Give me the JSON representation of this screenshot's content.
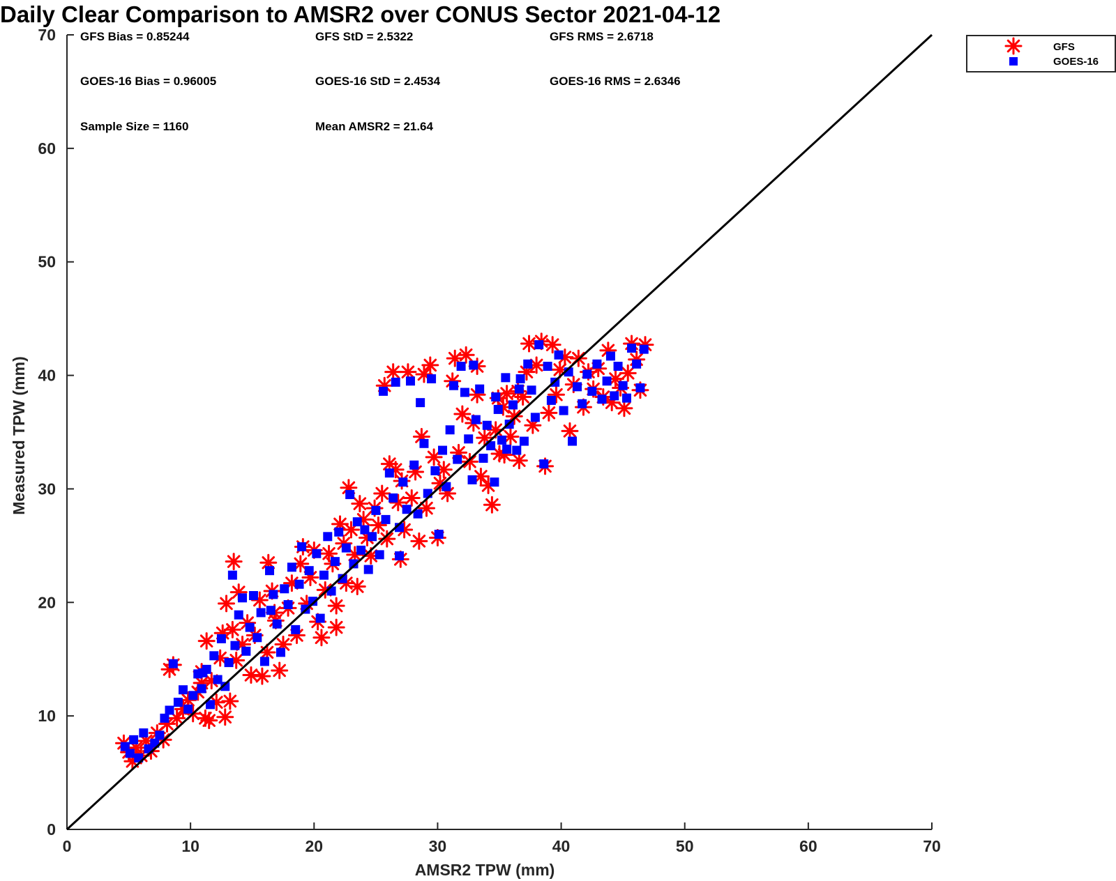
{
  "chart_data": {
    "type": "scatter",
    "title": "Daily Clear Comparison to AMSR2 over CONUS Sector 2021-04-12",
    "xlabel": "AMSR2 TPW (mm)",
    "ylabel": "Measured TPW (mm)",
    "xlim": [
      0,
      70
    ],
    "ylim": [
      0,
      70
    ],
    "xticks": [
      "0",
      "10",
      "20",
      "30",
      "40",
      "50",
      "60",
      "70"
    ],
    "yticks": [
      "0",
      "10",
      "20",
      "30",
      "40",
      "50",
      "60",
      "70"
    ],
    "grid": false,
    "legend_position": "outside-top-right",
    "reference_line": {
      "from": [
        0,
        0
      ],
      "to": [
        70,
        70
      ],
      "color": "#000000"
    },
    "stats": [
      [
        "GFS Bias = 0.85244",
        "GFS StD = 2.5322",
        "GFS RMS = 2.6718"
      ],
      [
        "GOES-16 Bias = 0.96005",
        "GOES-16 StD = 2.4534",
        "GOES-16 RMS = 2.6346"
      ],
      [
        "Sample Size = 1160",
        "Mean AMSR2 = 21.64",
        ""
      ]
    ],
    "series": [
      {
        "name": "GFS",
        "marker": "asterisk",
        "color": "#ff0000",
        "points": [
          [
            4.6,
            7.6
          ],
          [
            5.0,
            6.8
          ],
          [
            5.3,
            6.0
          ],
          [
            5.6,
            7.2
          ],
          [
            6.0,
            6.5
          ],
          [
            6.4,
            7.8
          ],
          [
            6.8,
            6.9
          ],
          [
            7.3,
            8.5
          ],
          [
            7.8,
            7.9
          ],
          [
            8.1,
            9.3
          ],
          [
            8.3,
            14.1
          ],
          [
            8.6,
            14.5
          ],
          [
            8.9,
            9.8
          ],
          [
            9.4,
            10.6
          ],
          [
            9.8,
            11.4
          ],
          [
            10.2,
            10.2
          ],
          [
            10.6,
            12.1
          ],
          [
            10.9,
            12.9
          ],
          [
            11.2,
            9.8
          ],
          [
            11.5,
            9.6
          ],
          [
            11.3,
            16.6
          ],
          [
            11.7,
            13.1
          ],
          [
            12.1,
            11.2
          ],
          [
            12.4,
            15.1
          ],
          [
            12.8,
            9.9
          ],
          [
            12.6,
            17.3
          ],
          [
            12.9,
            19.9
          ],
          [
            13.2,
            11.3
          ],
          [
            13.4,
            17.6
          ],
          [
            13.5,
            23.6
          ],
          [
            13.7,
            14.9
          ],
          [
            13.9,
            20.9
          ],
          [
            14.2,
            16.3
          ],
          [
            14.6,
            18.2
          ],
          [
            14.9,
            13.6
          ],
          [
            15.2,
            17.1
          ],
          [
            15.6,
            20.2
          ],
          [
            15.8,
            13.5
          ],
          [
            16.2,
            15.6
          ],
          [
            16.3,
            23.5
          ],
          [
            16.6,
            21.0
          ],
          [
            16.9,
            18.4
          ],
          [
            17.2,
            14.0
          ],
          [
            17.5,
            16.3
          ],
          [
            17.9,
            19.5
          ],
          [
            18.2,
            21.7
          ],
          [
            18.6,
            17.1
          ],
          [
            18.9,
            23.4
          ],
          [
            19.1,
            24.9
          ],
          [
            19.4,
            19.9
          ],
          [
            19.7,
            22.2
          ],
          [
            20.0,
            24.6
          ],
          [
            20.3,
            18.3
          ],
          [
            20.6,
            16.9
          ],
          [
            20.9,
            21.1
          ],
          [
            21.2,
            24.3
          ],
          [
            21.5,
            23.4
          ],
          [
            21.8,
            19.7
          ],
          [
            22.1,
            26.9
          ],
          [
            22.4,
            25.2
          ],
          [
            22.6,
            21.7
          ],
          [
            22.8,
            30.1
          ],
          [
            23.0,
            26.4
          ],
          [
            23.3,
            24.2
          ],
          [
            23.5,
            21.4
          ],
          [
            23.7,
            28.7
          ],
          [
            24.0,
            27.3
          ],
          [
            24.3,
            25.7
          ],
          [
            24.6,
            24.1
          ],
          [
            24.9,
            28.3
          ],
          [
            25.2,
            26.8
          ],
          [
            25.5,
            29.6
          ],
          [
            25.7,
            39.1
          ],
          [
            25.9,
            25.6
          ],
          [
            26.1,
            32.2
          ],
          [
            26.4,
            40.3
          ],
          [
            26.6,
            31.7
          ],
          [
            26.8,
            28.8
          ],
          [
            27.1,
            30.7
          ],
          [
            27.3,
            26.4
          ],
          [
            27.6,
            40.3
          ],
          [
            27.9,
            29.2
          ],
          [
            28.2,
            31.5
          ],
          [
            28.5,
            25.4
          ],
          [
            28.7,
            34.6
          ],
          [
            28.9,
            40.1
          ],
          [
            29.1,
            28.3
          ],
          [
            29.4,
            40.9
          ],
          [
            29.7,
            32.8
          ],
          [
            30.0,
            25.7
          ],
          [
            30.2,
            30.5
          ],
          [
            30.5,
            31.7
          ],
          [
            30.8,
            29.6
          ],
          [
            31.2,
            39.5
          ],
          [
            31.4,
            41.5
          ],
          [
            31.7,
            33.2
          ],
          [
            32.0,
            36.6
          ],
          [
            32.3,
            41.8
          ],
          [
            32.6,
            32.4
          ],
          [
            32.9,
            35.8
          ],
          [
            33.2,
            38.3
          ],
          [
            33.5,
            31.1
          ],
          [
            33.8,
            34.5
          ],
          [
            34.1,
            30.3
          ],
          [
            34.4,
            28.6
          ],
          [
            34.7,
            35.2
          ],
          [
            35.0,
            33.1
          ],
          [
            35.3,
            37.2
          ],
          [
            35.6,
            38.4
          ],
          [
            35.9,
            34.6
          ],
          [
            36.2,
            36.4
          ],
          [
            36.6,
            32.5
          ],
          [
            36.9,
            38.1
          ],
          [
            37.2,
            40.3
          ],
          [
            37.4,
            42.8
          ],
          [
            37.7,
            35.6
          ],
          [
            38.0,
            40.9
          ],
          [
            38.4,
            43.0
          ],
          [
            38.7,
            32.0
          ],
          [
            39.0,
            36.7
          ],
          [
            39.3,
            42.7
          ],
          [
            39.6,
            38.3
          ],
          [
            39.9,
            40.5
          ],
          [
            40.3,
            41.6
          ],
          [
            40.7,
            35.1
          ],
          [
            41.0,
            39.2
          ],
          [
            41.4,
            41.5
          ],
          [
            41.8,
            37.2
          ],
          [
            42.2,
            40.3
          ],
          [
            42.6,
            38.8
          ],
          [
            43.0,
            40.6
          ],
          [
            43.4,
            38.1
          ],
          [
            43.8,
            42.2
          ],
          [
            44.1,
            37.6
          ],
          [
            44.4,
            39.7
          ],
          [
            44.8,
            38.9
          ],
          [
            45.1,
            37.1
          ],
          [
            45.4,
            40.2
          ],
          [
            45.7,
            42.8
          ],
          [
            46.1,
            41.4
          ],
          [
            46.4,
            38.7
          ],
          [
            46.8,
            42.7
          ],
          [
            34.9,
            38.0
          ],
          [
            36.5,
            38.6
          ],
          [
            33.2,
            40.8
          ],
          [
            35.4,
            33.0
          ],
          [
            27.0,
            23.8
          ],
          [
            16.8,
            19.1
          ],
          [
            10.9,
            13.9
          ],
          [
            21.8,
            17.8
          ]
        ]
      },
      {
        "name": "GOES-16",
        "marker": "square",
        "color": "#0000ff",
        "points": [
          [
            4.7,
            7.3
          ],
          [
            5.1,
            6.7
          ],
          [
            5.4,
            7.9
          ],
          [
            5.8,
            6.3
          ],
          [
            6.2,
            8.5
          ],
          [
            6.6,
            7.1
          ],
          [
            7.1,
            7.6
          ],
          [
            7.5,
            8.3
          ],
          [
            7.9,
            9.8
          ],
          [
            8.3,
            10.5
          ],
          [
            8.6,
            14.6
          ],
          [
            9.0,
            11.2
          ],
          [
            9.4,
            12.3
          ],
          [
            9.8,
            10.6
          ],
          [
            10.2,
            11.8
          ],
          [
            10.6,
            13.7
          ],
          [
            10.9,
            12.4
          ],
          [
            11.3,
            14.1
          ],
          [
            11.6,
            11.0
          ],
          [
            11.9,
            15.3
          ],
          [
            12.2,
            13.2
          ],
          [
            12.5,
            16.8
          ],
          [
            12.8,
            12.6
          ],
          [
            13.1,
            14.7
          ],
          [
            13.4,
            22.4
          ],
          [
            13.6,
            16.2
          ],
          [
            13.9,
            18.9
          ],
          [
            14.2,
            20.4
          ],
          [
            14.5,
            15.7
          ],
          [
            14.8,
            17.8
          ],
          [
            15.1,
            20.6
          ],
          [
            15.4,
            16.9
          ],
          [
            15.7,
            19.1
          ],
          [
            16.0,
            14.8
          ],
          [
            16.4,
            22.8
          ],
          [
            16.7,
            20.7
          ],
          [
            17.0,
            18.1
          ],
          [
            17.3,
            15.6
          ],
          [
            17.6,
            21.2
          ],
          [
            17.9,
            19.8
          ],
          [
            18.2,
            23.1
          ],
          [
            18.5,
            17.6
          ],
          [
            18.8,
            21.6
          ],
          [
            19.0,
            24.9
          ],
          [
            19.3,
            19.4
          ],
          [
            19.6,
            22.8
          ],
          [
            19.9,
            20.1
          ],
          [
            20.2,
            24.3
          ],
          [
            20.5,
            18.6
          ],
          [
            20.8,
            22.4
          ],
          [
            21.1,
            25.8
          ],
          [
            21.4,
            21.0
          ],
          [
            21.7,
            23.6
          ],
          [
            22.0,
            26.2
          ],
          [
            22.3,
            22.1
          ],
          [
            22.6,
            24.8
          ],
          [
            22.9,
            29.5
          ],
          [
            23.2,
            23.4
          ],
          [
            23.5,
            27.1
          ],
          [
            23.8,
            24.6
          ],
          [
            24.1,
            26.4
          ],
          [
            24.4,
            22.9
          ],
          [
            24.7,
            25.8
          ],
          [
            25.0,
            28.1
          ],
          [
            25.3,
            24.2
          ],
          [
            25.6,
            38.6
          ],
          [
            25.8,
            27.3
          ],
          [
            26.1,
            31.4
          ],
          [
            26.4,
            29.2
          ],
          [
            26.6,
            39.4
          ],
          [
            26.9,
            26.6
          ],
          [
            27.2,
            30.6
          ],
          [
            27.5,
            28.2
          ],
          [
            27.8,
            39.5
          ],
          [
            28.1,
            32.1
          ],
          [
            28.4,
            27.8
          ],
          [
            28.6,
            37.6
          ],
          [
            28.9,
            34.0
          ],
          [
            29.2,
            29.6
          ],
          [
            29.5,
            39.7
          ],
          [
            29.8,
            31.6
          ],
          [
            30.1,
            26.0
          ],
          [
            30.4,
            33.4
          ],
          [
            30.7,
            30.2
          ],
          [
            31.0,
            35.2
          ],
          [
            31.3,
            39.1
          ],
          [
            31.6,
            32.6
          ],
          [
            31.9,
            40.8
          ],
          [
            32.2,
            38.5
          ],
          [
            32.5,
            34.4
          ],
          [
            32.8,
            30.8
          ],
          [
            33.1,
            36.1
          ],
          [
            33.4,
            38.8
          ],
          [
            33.7,
            32.7
          ],
          [
            34.0,
            35.6
          ],
          [
            34.3,
            33.8
          ],
          [
            34.6,
            30.6
          ],
          [
            34.9,
            37.0
          ],
          [
            35.2,
            34.3
          ],
          [
            35.5,
            39.8
          ],
          [
            35.8,
            35.7
          ],
          [
            36.1,
            37.4
          ],
          [
            36.4,
            33.4
          ],
          [
            36.7,
            39.7
          ],
          [
            37.0,
            34.2
          ],
          [
            37.3,
            41.0
          ],
          [
            37.6,
            38.7
          ],
          [
            37.9,
            36.3
          ],
          [
            38.2,
            42.7
          ],
          [
            38.6,
            32.2
          ],
          [
            38.9,
            40.8
          ],
          [
            39.2,
            37.8
          ],
          [
            39.5,
            39.4
          ],
          [
            39.8,
            41.8
          ],
          [
            40.2,
            36.9
          ],
          [
            40.6,
            40.3
          ],
          [
            40.9,
            34.2
          ],
          [
            41.3,
            39.0
          ],
          [
            41.7,
            37.5
          ],
          [
            42.1,
            40.1
          ],
          [
            42.5,
            38.6
          ],
          [
            42.9,
            41.0
          ],
          [
            43.3,
            37.9
          ],
          [
            43.7,
            39.5
          ],
          [
            44.0,
            41.7
          ],
          [
            44.3,
            38.2
          ],
          [
            44.6,
            40.8
          ],
          [
            45.0,
            39.1
          ],
          [
            45.3,
            38.0
          ],
          [
            45.7,
            42.4
          ],
          [
            46.1,
            41.0
          ],
          [
            46.4,
            38.9
          ],
          [
            46.7,
            42.3
          ],
          [
            34.7,
            38.1
          ],
          [
            36.6,
            38.8
          ],
          [
            32.9,
            40.9
          ],
          [
            35.6,
            33.5
          ],
          [
            26.9,
            24.1
          ],
          [
            16.5,
            19.3
          ],
          [
            11.0,
            13.8
          ]
        ]
      }
    ]
  }
}
